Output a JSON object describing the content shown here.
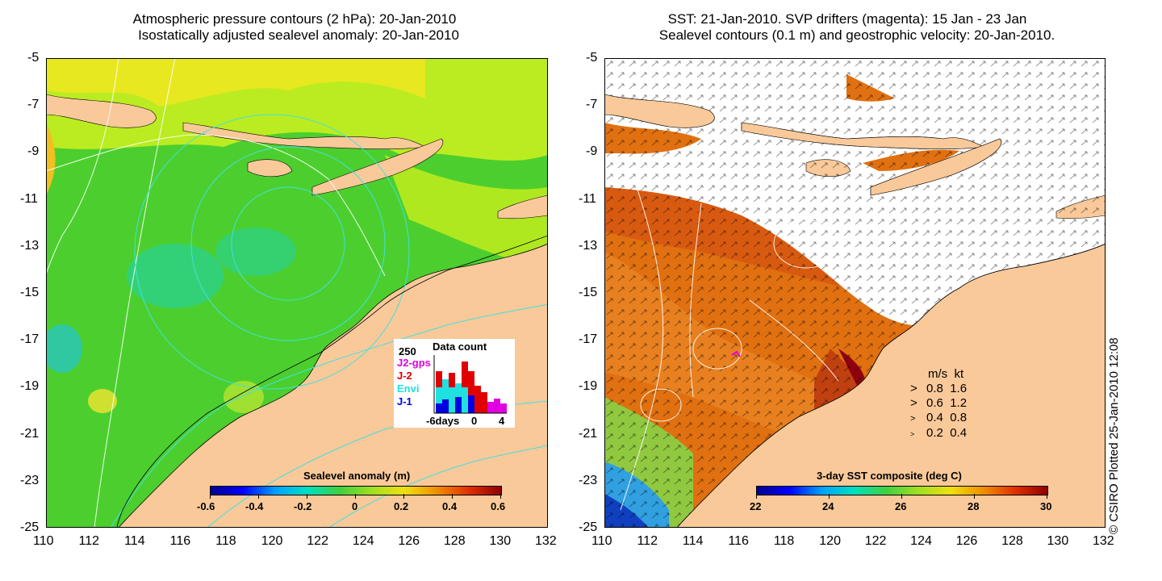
{
  "left_panel": {
    "title_line1": "Atmospheric pressure contours (2 hPa): 20-Jan-2010",
    "title_line2": "Isostatically adjusted sealevel anomaly: 20-Jan-2010",
    "colorbar": {
      "label": "Sealevel anomaly (m)",
      "ticks": [
        "-0.6",
        "-0.4",
        "-0.2",
        "0",
        "0.2",
        "0.4",
        "0.6"
      ]
    },
    "data_count": {
      "title": "Data count",
      "ymax_label": "250",
      "series": [
        {
          "name": "J2-gps",
          "color": "#e000e0"
        },
        {
          "name": "J-2",
          "color": "#e00000"
        },
        {
          "name": "Envi",
          "color": "#20e0e0"
        },
        {
          "name": "J-1",
          "color": "#0000e0"
        }
      ],
      "x_ticks": [
        "-6days",
        "0",
        "4"
      ]
    }
  },
  "right_panel": {
    "title_line1": "SST: 21-Jan-2010. SVP drifters (magenta): 15 Jan - 23 Jan",
    "title_line2": "Sealevel contours (0.1 m) and geostrophic velocity: 20-Jan-2010.",
    "colorbar": {
      "label": "3-day SST composite (deg C)",
      "ticks": [
        "22",
        "24",
        "26",
        "28",
        "30"
      ]
    },
    "speed_legend": {
      "header_ms": "m/s",
      "header_kt": "kt",
      "rows": [
        {
          "ms": "0.8",
          "kt": "1.6"
        },
        {
          "ms": "0.6",
          "kt": "1.2"
        },
        {
          "ms": "0.4",
          "kt": "0.8"
        },
        {
          "ms": "0.2",
          "kt": "0.4"
        }
      ]
    }
  },
  "axes": {
    "x_ticks": [
      "110",
      "112",
      "114",
      "116",
      "118",
      "120",
      "122",
      "124",
      "126",
      "128",
      "130",
      "132"
    ],
    "y_ticks": [
      "-5",
      "-7",
      "-9",
      "-11",
      "-13",
      "-15",
      "-17",
      "-19",
      "-21",
      "-23",
      "-25"
    ]
  },
  "credit": "© CSIRO Plotted 25-Jan-2010 12:08",
  "colors": {
    "land": "#f9c99a",
    "ocean_anomaly": "#4cd62a",
    "ocean_sst": "#e07010",
    "cloud": "#ffffff"
  }
}
